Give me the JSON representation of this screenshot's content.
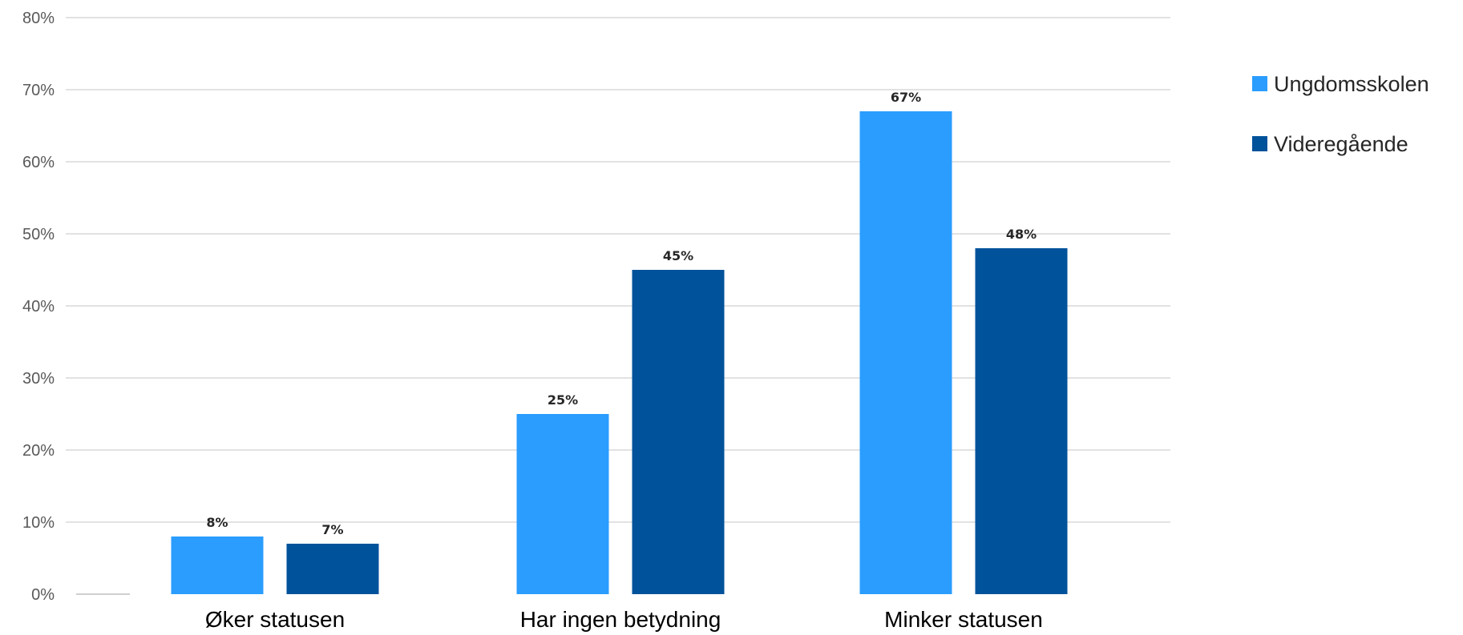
{
  "chart_data": {
    "type": "bar",
    "title": "",
    "xlabel": "",
    "ylabel": "",
    "categories": [
      "Øker statusen",
      "Har ingen betydning",
      "Minker statusen"
    ],
    "series": [
      {
        "name": "Ungdomsskolen",
        "values": [
          8,
          25,
          67
        ],
        "labels": [
          "8%",
          "25%",
          "67%"
        ],
        "color": "#2a9dff"
      },
      {
        "name": "Videregående",
        "values": [
          7,
          45,
          48
        ],
        "labels": [
          "7%",
          "45%",
          "48%"
        ],
        "color": "#00529b"
      }
    ],
    "y_ticks": [
      "0%",
      "10%",
      "20%",
      "30%",
      "40%",
      "50%",
      "60%",
      "70%",
      "80%"
    ],
    "ylim": [
      0,
      80
    ],
    "y_unit": "%",
    "grid": true,
    "gridline_color": "#d9d9d9",
    "legend_position": "right"
  }
}
